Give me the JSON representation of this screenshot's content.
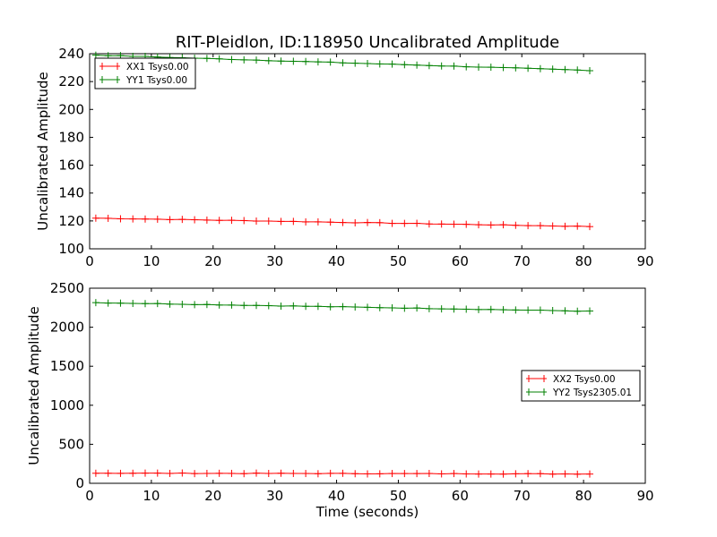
{
  "chart_data": [
    {
      "type": "line",
      "title": "RIT-Pleidlon, ID:118950 Uncalibrated Amplitude",
      "xlabel": "",
      "ylabel": "Uncalibrated Amplitude",
      "xlim": [
        0,
        90
      ],
      "ylim": [
        100,
        240
      ],
      "xticks": [
        0,
        10,
        20,
        30,
        40,
        50,
        60,
        70,
        80,
        90
      ],
      "yticks": [
        100,
        120,
        140,
        160,
        180,
        200,
        220,
        240
      ],
      "legend_position": "upper-left",
      "grid": false,
      "x": [
        1,
        81
      ],
      "series": [
        {
          "name": "XX1 Tsys0.00",
          "color": "#ff0000",
          "x_start": 1,
          "x_end": 81,
          "y_start": 122,
          "y_end": 116
        },
        {
          "name": "YY1 Tsys0.00",
          "color": "#008000",
          "x_start": 1,
          "x_end": 81,
          "y_start": 239,
          "y_end": 228
        }
      ]
    },
    {
      "type": "line",
      "title": "",
      "xlabel": "Time (seconds)",
      "ylabel": "Uncalibrated Amplitude",
      "xlim": [
        0,
        90
      ],
      "ylim": [
        0,
        2500
      ],
      "xticks": [
        0,
        10,
        20,
        30,
        40,
        50,
        60,
        70,
        80,
        90
      ],
      "yticks": [
        0,
        500,
        1000,
        1500,
        2000,
        2500
      ],
      "legend_position": "center-right",
      "grid": false,
      "series": [
        {
          "name": "XX2 Tsys0.00",
          "color": "#ff0000",
          "x_start": 1,
          "x_end": 81,
          "y_start": 130,
          "y_end": 120
        },
        {
          "name": "YY2 Tsys2305.01",
          "color": "#008000",
          "x_start": 1,
          "x_end": 81,
          "y_start": 2315,
          "y_end": 2205
        }
      ]
    }
  ]
}
